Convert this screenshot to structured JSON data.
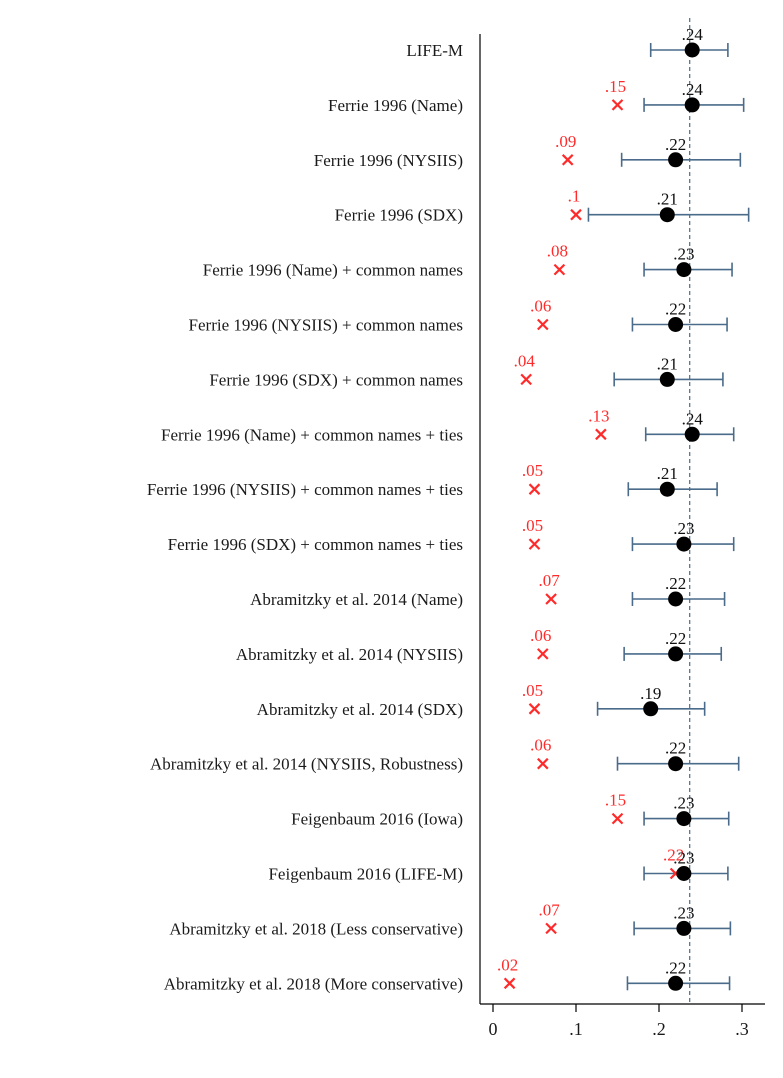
{
  "chart_data": {
    "type": "scatter",
    "title": "",
    "xlabel": "",
    "ylabel": "",
    "xlim": [
      -0.02,
      0.32
    ],
    "x_ticks": [
      0,
      0.1,
      0.2,
      0.3
    ],
    "x_tick_labels": [
      "0",
      ".1",
      ".2",
      ".3"
    ],
    "reference_line": 0.237,
    "colors": {
      "estimate": "#000000",
      "ci": "#4a6b8a",
      "alt": "#ff2a2a",
      "ref": "#4a6b8a"
    },
    "categories": [
      "LIFE-M",
      "Ferrie 1996 (Name)",
      "Ferrie 1996 (NYSIIS)",
      "Ferrie 1996 (SDX)",
      "Ferrie 1996 (Name) + common names",
      "Ferrie 1996 (NYSIIS) + common names",
      "Ferrie 1996 (SDX) + common names",
      "Ferrie 1996 (Name) + common names + ties",
      "Ferrie 1996 (NYSIIS) + common names + ties",
      "Ferrie 1996 (SDX) + common names + ties",
      "Abramitzky et al. 2014 (Name)",
      "Abramitzky et al. 2014 (NYSIIS)",
      "Abramitzky et al. 2014 (SDX)",
      "Abramitzky et al. 2014 (NYSIIS, Robustness)",
      "Feigenbaum 2016 (Iowa)",
      "Feigenbaum 2016 (LIFE-M)",
      "Abramitzky et al. 2018 (Less conservative)",
      "Abramitzky et al. 2018 (More conservative)"
    ],
    "series": [
      {
        "marker": "circle",
        "values": [
          0.24,
          0.24,
          0.22,
          0.21,
          0.23,
          0.22,
          0.21,
          0.24,
          0.21,
          0.23,
          0.22,
          0.22,
          0.19,
          0.22,
          0.23,
          0.23,
          0.23,
          0.22
        ],
        "labels": [
          ".24",
          ".24",
          ".22",
          ".21",
          ".23",
          ".22",
          ".21",
          ".24",
          ".21",
          ".23",
          ".22",
          ".22",
          ".19",
          ".22",
          ".23",
          ".23",
          ".23",
          ".22"
        ],
        "ci_low": [
          0.19,
          0.182,
          0.155,
          0.115,
          0.182,
          0.168,
          0.146,
          0.184,
          0.163,
          0.168,
          0.168,
          0.158,
          0.126,
          0.15,
          0.182,
          0.182,
          0.17,
          0.162
        ],
        "ci_high": [
          0.283,
          0.302,
          0.298,
          0.308,
          0.288,
          0.282,
          0.277,
          0.29,
          0.27,
          0.29,
          0.279,
          0.275,
          0.255,
          0.296,
          0.284,
          0.283,
          0.286,
          0.285
        ]
      },
      {
        "marker": "x",
        "values": [
          null,
          0.15,
          0.09,
          0.1,
          0.08,
          0.06,
          0.04,
          0.13,
          0.05,
          0.05,
          0.07,
          0.06,
          0.05,
          0.06,
          0.15,
          0.22,
          0.07,
          0.02
        ],
        "labels": [
          "",
          ".15",
          ".09",
          ".1",
          ".08",
          ".06",
          ".04",
          ".13",
          ".05",
          ".05",
          ".07",
          ".06",
          ".05",
          ".06",
          ".15",
          ".22",
          ".07",
          ".02"
        ]
      }
    ]
  }
}
